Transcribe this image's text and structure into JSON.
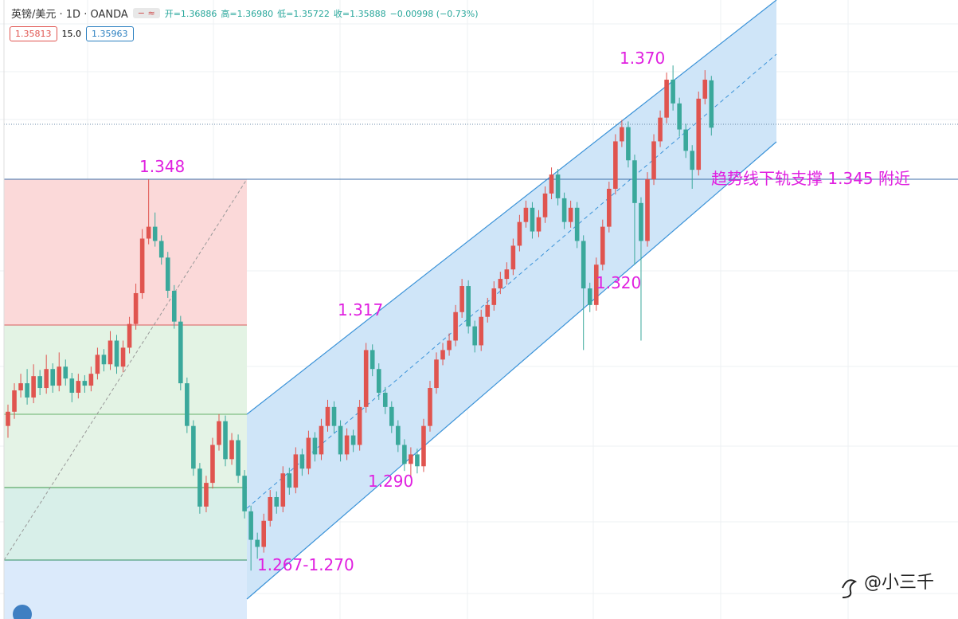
{
  "chart_data": {
    "type": "candlestick",
    "header": {
      "symbol": "英镑/美元 · 1D · OANDA",
      "ohlc": [
        "开=1.36886",
        "高=1.36980",
        "低=1.35722",
        "收=1.35888",
        "−0.00998 (−0.73%)"
      ],
      "bid": "1.35813",
      "spread": "15.0",
      "ask": "1.35963"
    },
    "annotations": [
      "1.348",
      "1.370",
      "1.317",
      "1.290",
      "1.320",
      "1.267-1.270",
      "趋势线下轨支撑 1.345 附近"
    ],
    "watermark": "@小三千",
    "up_color": "#e0544f",
    "down_color": "#3aa89b",
    "ylim": [
      1.2553,
      1.3858
    ],
    "ohlc": [
      [
        1.296,
        1.3005,
        1.2935,
        1.299
      ],
      [
        1.299,
        1.305,
        1.2975,
        1.3035
      ],
      [
        1.3035,
        1.307,
        1.302,
        1.305
      ],
      [
        1.305,
        1.308,
        1.3005,
        1.302
      ],
      [
        1.302,
        1.309,
        1.3008,
        1.3065
      ],
      [
        1.3065,
        1.3078,
        1.3025,
        1.304
      ],
      [
        1.304,
        1.311,
        1.3028,
        1.308
      ],
      [
        1.308,
        1.3092,
        1.303,
        1.3045
      ],
      [
        1.3045,
        1.3115,
        1.3033,
        1.3085
      ],
      [
        1.3085,
        1.31,
        1.3045,
        1.306
      ],
      [
        1.306,
        1.3072,
        1.301,
        1.303
      ],
      [
        1.303,
        1.307,
        1.3018,
        1.3055
      ],
      [
        1.3055,
        1.3067,
        1.303,
        1.3045
      ],
      [
        1.3045,
        1.3085,
        1.3033,
        1.307
      ],
      [
        1.307,
        1.3125,
        1.3058,
        1.311
      ],
      [
        1.311,
        1.3122,
        1.3075,
        1.309
      ],
      [
        1.309,
        1.316,
        1.3078,
        1.314
      ],
      [
        1.314,
        1.3152,
        1.307,
        1.3085
      ],
      [
        1.3085,
        1.314,
        1.3073,
        1.3125
      ],
      [
        1.3125,
        1.319,
        1.3113,
        1.3175
      ],
      [
        1.3175,
        1.326,
        1.3163,
        1.324
      ],
      [
        1.324,
        1.3375,
        1.3228,
        1.3355
      ],
      [
        1.3355,
        1.348,
        1.3343,
        1.338
      ],
      [
        1.338,
        1.341,
        1.3338,
        1.335
      ],
      [
        1.335,
        1.3362,
        1.33,
        1.3315
      ],
      [
        1.3315,
        1.3327,
        1.323,
        1.3245
      ],
      [
        1.3245,
        1.3257,
        1.3165,
        1.318
      ],
      [
        1.318,
        1.3192,
        1.3035,
        1.305
      ],
      [
        1.305,
        1.3062,
        1.2945,
        1.296
      ],
      [
        1.296,
        1.2972,
        1.2855,
        1.287
      ],
      [
        1.287,
        1.2882,
        1.2775,
        1.279
      ],
      [
        1.279,
        1.2855,
        1.2778,
        1.284
      ],
      [
        1.284,
        1.2935,
        1.2828,
        1.292
      ],
      [
        1.292,
        1.2985,
        1.2908,
        1.297
      ],
      [
        1.297,
        1.2982,
        1.2875,
        1.289
      ],
      [
        1.289,
        1.2945,
        1.2878,
        1.293
      ],
      [
        1.293,
        1.2942,
        1.284,
        1.2855
      ],
      [
        1.2855,
        1.2867,
        1.2765,
        1.278
      ],
      [
        1.278,
        1.2792,
        1.2655,
        1.272
      ],
      [
        1.272,
        1.2735,
        1.268,
        1.2705
      ],
      [
        1.2705,
        1.2775,
        1.2693,
        1.276
      ],
      [
        1.276,
        1.2825,
        1.2748,
        1.281
      ],
      [
        1.281,
        1.2822,
        1.2775,
        1.279
      ],
      [
        1.279,
        1.2875,
        1.2778,
        1.286
      ],
      [
        1.286,
        1.2872,
        1.2815,
        1.283
      ],
      [
        1.283,
        1.2915,
        1.2818,
        1.29
      ],
      [
        1.29,
        1.2912,
        1.2855,
        1.287
      ],
      [
        1.287,
        1.295,
        1.2858,
        1.2935
      ],
      [
        1.2935,
        1.2947,
        1.2885,
        1.29
      ],
      [
        1.29,
        1.2975,
        1.2888,
        1.296
      ],
      [
        1.296,
        1.3015,
        1.2948,
        1.3
      ],
      [
        1.3,
        1.3012,
        1.2945,
        1.296
      ],
      [
        1.296,
        1.2972,
        1.2885,
        1.29
      ],
      [
        1.29,
        1.2955,
        1.2888,
        1.294
      ],
      [
        1.294,
        1.2952,
        1.2905,
        1.292
      ],
      [
        1.292,
        1.3015,
        1.2908,
        1.3
      ],
      [
        1.3,
        1.3135,
        1.2988,
        1.312
      ],
      [
        1.312,
        1.3132,
        1.3065,
        1.308
      ],
      [
        1.308,
        1.3092,
        1.3015,
        1.303
      ],
      [
        1.303,
        1.3042,
        1.2985,
        1.3
      ],
      [
        1.3,
        1.3012,
        1.2945,
        1.296
      ],
      [
        1.296,
        1.2972,
        1.2905,
        1.292
      ],
      [
        1.292,
        1.2932,
        1.2865,
        1.288
      ],
      [
        1.288,
        1.2915,
        1.285,
        1.29
      ],
      [
        1.29,
        1.2912,
        1.286,
        1.2875
      ],
      [
        1.2875,
        1.2975,
        1.2863,
        1.296
      ],
      [
        1.296,
        1.3055,
        1.2948,
        1.304
      ],
      [
        1.304,
        1.3115,
        1.3028,
        1.31
      ],
      [
        1.31,
        1.3135,
        1.3088,
        1.312
      ],
      [
        1.312,
        1.3155,
        1.3108,
        1.314
      ],
      [
        1.314,
        1.3215,
        1.3128,
        1.32
      ],
      [
        1.32,
        1.327,
        1.3188,
        1.3255
      ],
      [
        1.3255,
        1.3267,
        1.3155,
        1.317
      ],
      [
        1.317,
        1.3182,
        1.3115,
        1.313
      ],
      [
        1.313,
        1.3205,
        1.3118,
        1.319
      ],
      [
        1.319,
        1.323,
        1.3178,
        1.3215
      ],
      [
        1.3215,
        1.3265,
        1.3203,
        1.325
      ],
      [
        1.325,
        1.3285,
        1.3238,
        1.327
      ],
      [
        1.327,
        1.3305,
        1.3258,
        1.329
      ],
      [
        1.329,
        1.3355,
        1.3278,
        1.334
      ],
      [
        1.334,
        1.3405,
        1.3328,
        1.339
      ],
      [
        1.339,
        1.3435,
        1.3378,
        1.342
      ],
      [
        1.342,
        1.3432,
        1.3355,
        1.337
      ],
      [
        1.337,
        1.3415,
        1.3358,
        1.34
      ],
      [
        1.34,
        1.3465,
        1.3388,
        1.345
      ],
      [
        1.345,
        1.3505,
        1.3438,
        1.349
      ],
      [
        1.349,
        1.3502,
        1.3425,
        1.344
      ],
      [
        1.344,
        1.3452,
        1.3375,
        1.339
      ],
      [
        1.339,
        1.3435,
        1.3378,
        1.342
      ],
      [
        1.342,
        1.3432,
        1.3335,
        1.335
      ],
      [
        1.335,
        1.3362,
        1.312,
        1.325
      ],
      [
        1.325,
        1.3262,
        1.32,
        1.3215
      ],
      [
        1.3215,
        1.3315,
        1.3203,
        1.33
      ],
      [
        1.33,
        1.3395,
        1.3288,
        1.338
      ],
      [
        1.338,
        1.3475,
        1.3368,
        1.346
      ],
      [
        1.346,
        1.3575,
        1.3448,
        1.356
      ],
      [
        1.356,
        1.3605,
        1.3548,
        1.359
      ],
      [
        1.359,
        1.3602,
        1.3505,
        1.352
      ],
      [
        1.352,
        1.3532,
        1.33,
        1.343
      ],
      [
        1.343,
        1.3442,
        1.314,
        1.335
      ],
      [
        1.335,
        1.3495,
        1.3338,
        1.348
      ],
      [
        1.348,
        1.3575,
        1.3468,
        1.356
      ],
      [
        1.356,
        1.3625,
        1.3548,
        1.361
      ],
      [
        1.361,
        1.3705,
        1.3598,
        1.369
      ],
      [
        1.369,
        1.372,
        1.3625,
        1.364
      ],
      [
        1.364,
        1.3652,
        1.357,
        1.3585
      ],
      [
        1.3585,
        1.3597,
        1.3525,
        1.354
      ],
      [
        1.354,
        1.3552,
        1.346,
        1.35
      ],
      [
        1.35,
        1.3665,
        1.3488,
        1.365
      ],
      [
        1.365,
        1.371,
        1.3638,
        1.369
      ],
      [
        1.36886,
        1.3698,
        1.35722,
        1.35888
      ]
    ]
  }
}
